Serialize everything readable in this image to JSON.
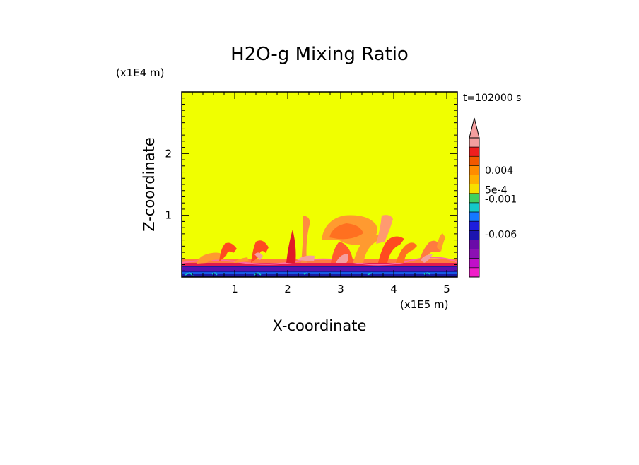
{
  "chart_data": {
    "type": "heatmap",
    "title": "H2O-g Mixing Ratio",
    "xlabel": "X-coordinate",
    "ylabel": "Z-coordinate",
    "x_scale_label": "(x1E5 m)",
    "y_scale_label": "(x1E4 m)",
    "time_label": "t=102000 s",
    "xlim": [
      0,
      5.2
    ],
    "ylim": [
      0,
      3
    ],
    "x_ticks": [
      "1",
      "2",
      "3",
      "4",
      "5"
    ],
    "y_ticks": [
      "1",
      "2"
    ],
    "colorbar": {
      "levels": [
        "",
        "0.004",
        "",
        "5e-4",
        "-0.001",
        "",
        "-0.006",
        ""
      ],
      "labels": [
        "0.004",
        "5e-4",
        "-0.001",
        "-0.006"
      ],
      "colors": [
        "#f49f9f",
        "#ef1f1f",
        "#f25800",
        "#ff8c00",
        "#ffb000",
        "#f7e000",
        "#40d060",
        "#14c8c8",
        "#1478ff",
        "#1e1edc",
        "#1c14b0",
        "#6a0aa8",
        "#8c10b4",
        "#c010c8",
        "#f01ec8"
      ]
    },
    "field_description_background": "#f0ff00"
  }
}
